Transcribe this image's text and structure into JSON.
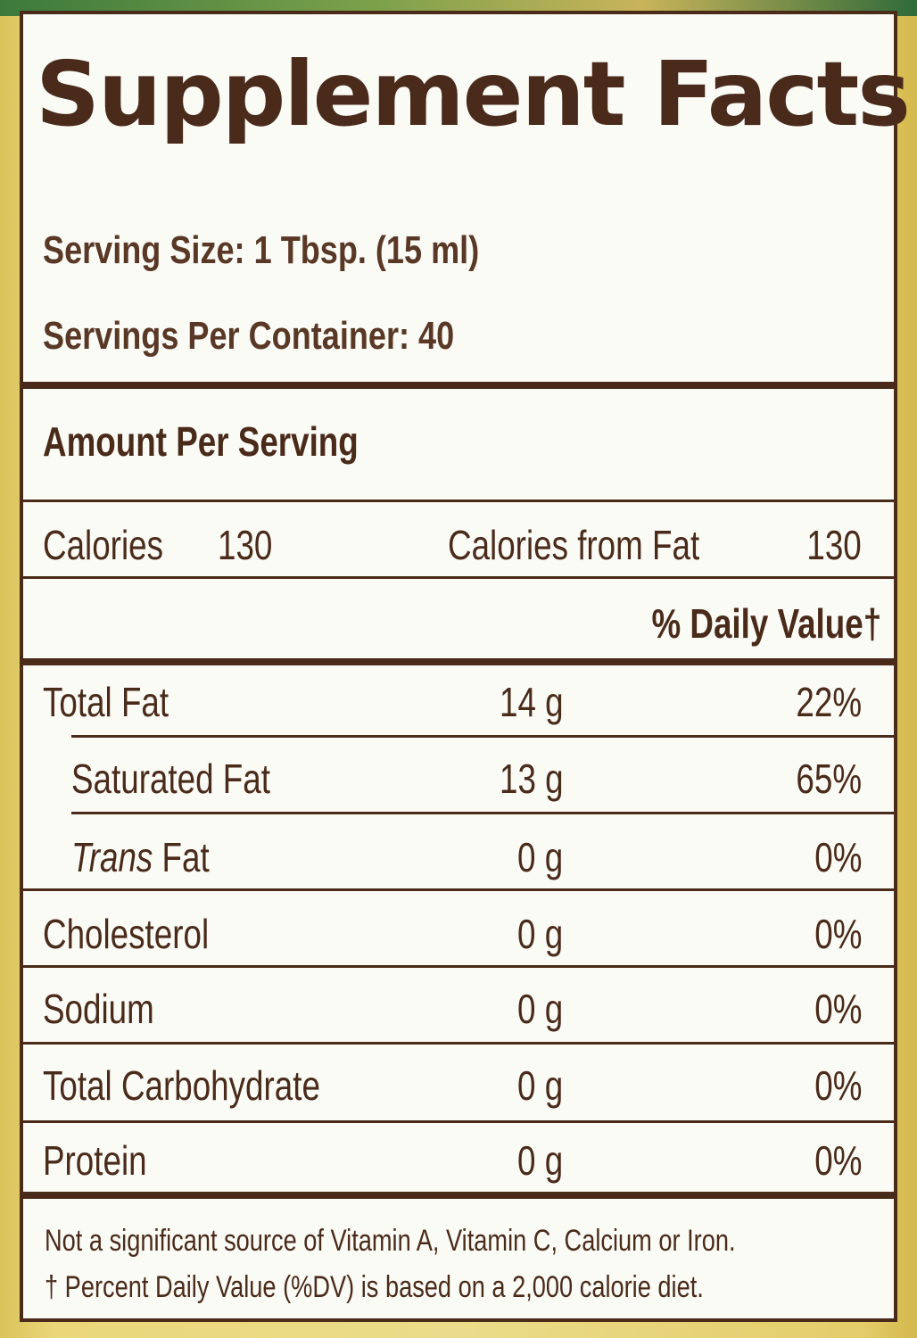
{
  "panel": {
    "title": "Supplement Facts",
    "serving_size": "Serving Size: 1 Tbsp. (15 ml)",
    "servings_per_container": "Servings Per Container: 40",
    "amount_per_serving": "Amount Per Serving",
    "calories_label": "Calories",
    "calories_value": "130",
    "calories_from_fat_label": "Calories from Fat",
    "calories_from_fat_value": "130",
    "daily_value_header": "% Daily Value†",
    "nutrients": [
      {
        "name": "Total Fat",
        "amount": "14 g",
        "dv": "22%"
      },
      {
        "name": "Saturated Fat",
        "amount": "13 g",
        "dv": "65%"
      },
      {
        "name_italic": "Trans",
        "name_rest": " Fat",
        "amount": "0 g",
        "dv": "0%"
      },
      {
        "name": "Cholesterol",
        "amount": "0 g",
        "dv": "0%"
      },
      {
        "name": "Sodium",
        "amount": "0 g",
        "dv": "0%"
      },
      {
        "name": "Total Carbohydrate",
        "amount": "0 g",
        "dv": "0%"
      },
      {
        "name": "Protein",
        "amount": "0 g",
        "dv": "0%"
      }
    ],
    "footnote_1": "Not a significant source of Vitamin A, Vitamin C, Calcium or Iron.",
    "footnote_2": "† Percent Daily Value (%DV) is based on a 2,000 calorie diet."
  },
  "colors": {
    "ink": "#4a2b1a",
    "panel_bg": "#fbfbf6",
    "label_bg": "#eadc8a"
  }
}
